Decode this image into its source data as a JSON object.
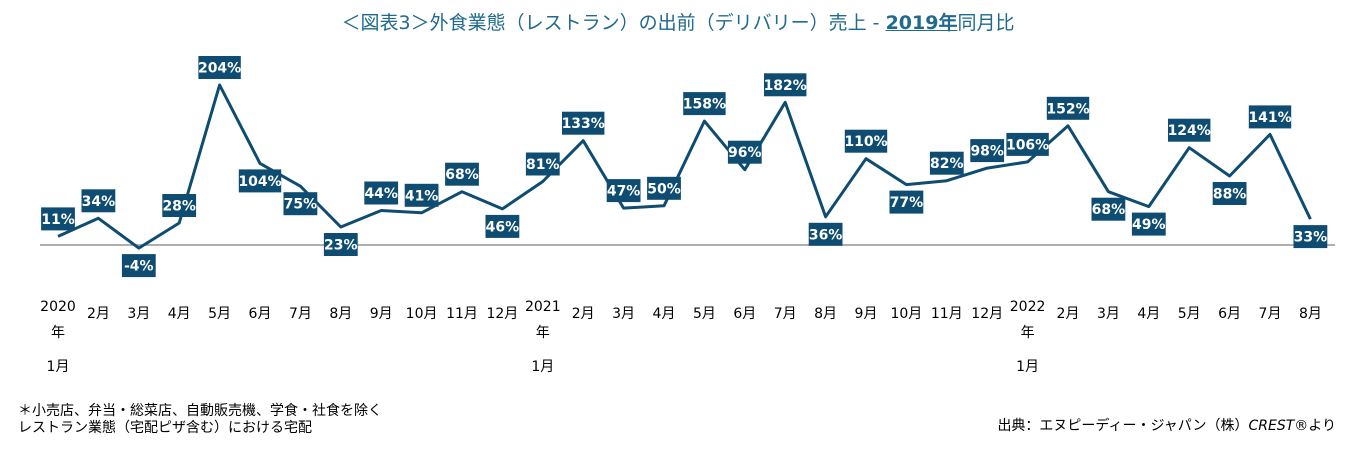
{
  "title": {
    "main": "＜図表3＞外食業態（レストラン）の出前（デリバリー）売上 - ",
    "year": "2019年",
    "suffix": "同月比"
  },
  "footnote": {
    "line1": "＊小売店、弁当・総菜店、自動販売機、学食・社食を除く",
    "line2": "レストラン業態（宅配ピザ含む）における宅配"
  },
  "source": {
    "prefix": "出典：エヌピーディー・ジャパン（株）",
    "crest": "CREST",
    "suffix": "®より"
  },
  "colors": {
    "line": "#0f4c72",
    "label_bg": "#0f4c72",
    "label_text": "#ffffff",
    "baseline": "#7f7f7f",
    "title": "#1f6a8e"
  },
  "chart_data": {
    "type": "line",
    "title": "＜図表3＞外食業態（レストラン）の出前（デリバリー）売上 - 2019年同月比",
    "xlabel": "",
    "ylabel": "",
    "categories": [
      "2020年1月",
      "2月",
      "3月",
      "4月",
      "5月",
      "6月",
      "7月",
      "8月",
      "9月",
      "10月",
      "11月",
      "12月",
      "2021年1月",
      "2月",
      "3月",
      "4月",
      "5月",
      "6月",
      "7月",
      "8月",
      "9月",
      "10月",
      "11月",
      "12月",
      "2022年1月",
      "2月",
      "3月",
      "4月",
      "5月",
      "6月",
      "7月",
      "8月"
    ],
    "tick_labels": [
      [
        "2020",
        "年",
        "1月"
      ],
      [
        "2月"
      ],
      [
        "3月"
      ],
      [
        "4月"
      ],
      [
        "5月"
      ],
      [
        "6月"
      ],
      [
        "7月"
      ],
      [
        "8月"
      ],
      [
        "9月"
      ],
      [
        "10月"
      ],
      [
        "11月"
      ],
      [
        "12月"
      ],
      [
        "2021",
        "年",
        "1月"
      ],
      [
        "2月"
      ],
      [
        "3月"
      ],
      [
        "4月"
      ],
      [
        "5月"
      ],
      [
        "6月"
      ],
      [
        "7月"
      ],
      [
        "8月"
      ],
      [
        "9月"
      ],
      [
        "10月"
      ],
      [
        "11月"
      ],
      [
        "12月"
      ],
      [
        "2022",
        "年",
        "1月"
      ],
      [
        "2月"
      ],
      [
        "3月"
      ],
      [
        "4月"
      ],
      [
        "5月"
      ],
      [
        "6月"
      ],
      [
        "7月"
      ],
      [
        "8月"
      ]
    ],
    "values": [
      11,
      34,
      -4,
      28,
      204,
      104,
      75,
      23,
      44,
      41,
      68,
      46,
      81,
      133,
      47,
      50,
      158,
      96,
      182,
      36,
      110,
      77,
      82,
      98,
      106,
      152,
      68,
      49,
      124,
      88,
      141,
      33
    ],
    "data_labels": [
      "11%",
      "34%",
      "-4%",
      "28%",
      "204%",
      "104%",
      "75%",
      "23%",
      "44%",
      "41%",
      "68%",
      "46%",
      "81%",
      "133%",
      "47%",
      "50%",
      "158%",
      "96%",
      "182%",
      "36%",
      "110%",
      "77%",
      "82%",
      "98%",
      "106%",
      "152%",
      "68%",
      "49%",
      "124%",
      "88%",
      "141%",
      "33%"
    ],
    "label_position": [
      "above",
      "above",
      "below",
      "above",
      "above",
      "below",
      "below",
      "below",
      "above",
      "above",
      "above",
      "below",
      "above",
      "above",
      "above",
      "above",
      "above",
      "above",
      "above",
      "below",
      "above",
      "below",
      "above",
      "above",
      "above",
      "above",
      "below",
      "below",
      "above",
      "below",
      "above",
      "below"
    ],
    "ylim": [
      -10,
      210
    ],
    "baseline": 0,
    "grid": false,
    "legend": "none"
  }
}
